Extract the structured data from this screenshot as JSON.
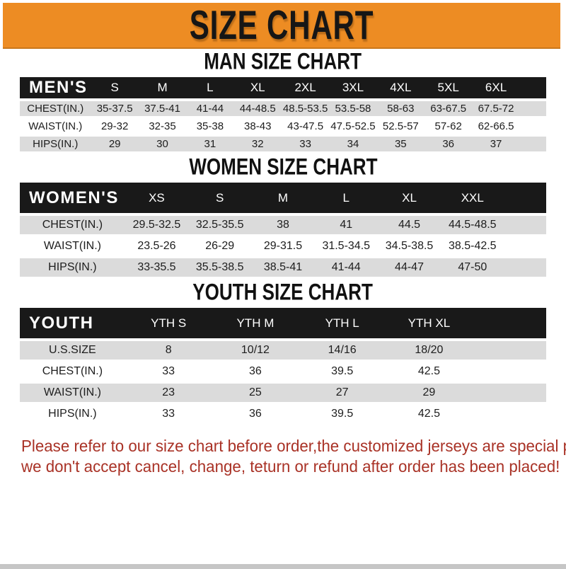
{
  "banner": {
    "title": "SIZE CHART"
  },
  "sections": [
    {
      "heading": "MAN SIZE CHART",
      "label": "MEN'S",
      "columns": [
        "S",
        "M",
        "L",
        "XL",
        "2XL",
        "3XL",
        "4XL",
        "5XL",
        "6XL"
      ],
      "rows": [
        {
          "label": "CHEST(IN.)",
          "values": [
            "35-37.5",
            "37.5-41",
            "41-44",
            "44-48.5",
            "48.5-53.5",
            "53.5-58",
            "58-63",
            "63-67.5",
            "67.5-72"
          ]
        },
        {
          "label": "WAIST(IN.)",
          "values": [
            "29-32",
            "32-35",
            "35-38",
            "38-43",
            "43-47.5",
            "47.5-52.5",
            "52.5-57",
            "57-62",
            "62-66.5"
          ]
        },
        {
          "label": "HIPS(IN.)",
          "values": [
            "29",
            "30",
            "31",
            "32",
            "33",
            "34",
            "35",
            "36",
            "37"
          ]
        }
      ]
    },
    {
      "heading": "WOMEN SIZE CHART",
      "label": "WOMEN'S",
      "columns": [
        "XS",
        "S",
        "M",
        "L",
        "XL",
        "XXL"
      ],
      "rows": [
        {
          "label": "CHEST(IN.)",
          "values": [
            "29.5-32.5",
            "32.5-35.5",
            "38",
            "41",
            "44.5",
            "44.5-48.5"
          ]
        },
        {
          "label": "WAIST(IN.)",
          "values": [
            "23.5-26",
            "26-29",
            "29-31.5",
            "31.5-34.5",
            "34.5-38.5",
            "38.5-42.5"
          ]
        },
        {
          "label": "HIPS(IN.)",
          "values": [
            "33-35.5",
            "35.5-38.5",
            "38.5-41",
            "41-44",
            "44-47",
            "47-50"
          ]
        }
      ]
    },
    {
      "heading": "YOUTH SIZE CHART",
      "label": "YOUTH",
      "columns": [
        "YTH S",
        "YTH M",
        "YTH L",
        "YTH XL"
      ],
      "rows": [
        {
          "label": "U.S.SIZE",
          "values": [
            "8",
            "10/12",
            "14/16",
            "18/20"
          ]
        },
        {
          "label": "CHEST(IN.)",
          "values": [
            "33",
            "36",
            "39.5",
            "42.5"
          ]
        },
        {
          "label": "WAIST(IN.)",
          "values": [
            "23",
            "25",
            "27",
            "29"
          ]
        },
        {
          "label": "HIPS(IN.)",
          "values": [
            "33",
            "36",
            "39.5",
            "42.5"
          ]
        }
      ]
    }
  ],
  "footer": {
    "line1": "Please refer to our size chart before order,the customized jerseys are special products,",
    "line2": "we don't accept cancel, change, teturn or refund after order has been placed!"
  },
  "colors": {
    "banner_bg": "#ed8c23",
    "header_bar_bg": "#191919",
    "header_bar_text": "#ffffff",
    "alt_row_bg": "#dbdbdb",
    "heading_text": "#111111",
    "footer_text": "#a93226"
  }
}
